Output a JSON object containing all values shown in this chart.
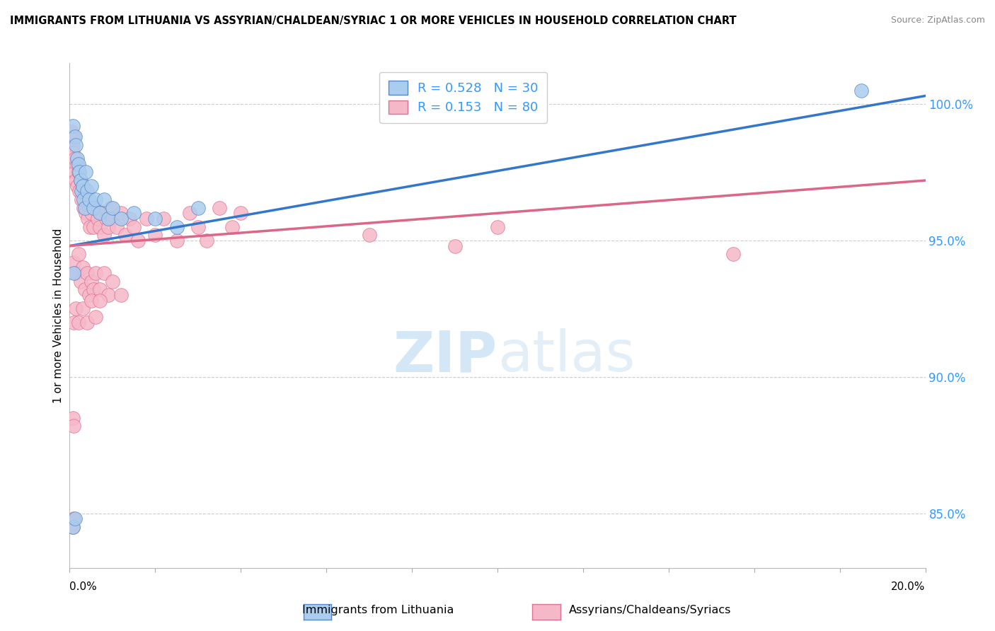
{
  "title": "IMMIGRANTS FROM LITHUANIA VS ASSYRIAN/CHALDEAN/SYRIAC 1 OR MORE VEHICLES IN HOUSEHOLD CORRELATION CHART",
  "source": "Source: ZipAtlas.com",
  "ylabel": "1 or more Vehicles in Household",
  "xmin": 0.0,
  "xmax": 20.0,
  "ymin": 83.0,
  "ymax": 101.5,
  "yticks": [
    85.0,
    90.0,
    95.0,
    100.0
  ],
  "ytick_labels": [
    "85.0%",
    "90.0%",
    "95.0%",
    "100.0%"
  ],
  "blue_r": "0.528",
  "blue_n": "30",
  "pink_r": "0.153",
  "pink_n": "80",
  "blue_label": "Immigrants from Lithuania",
  "pink_label": "Assyrians/Chaldeans/Syriacs",
  "blue_color": "#aaccee",
  "pink_color": "#f5b8c8",
  "blue_edge_color": "#5588cc",
  "pink_edge_color": "#e07090",
  "blue_line_color": "#3377cc",
  "pink_line_color": "#dd6688",
  "blue_trendline": [
    0.0,
    94.8,
    20.0,
    100.3
  ],
  "pink_trendline": [
    0.0,
    94.8,
    20.0,
    97.2
  ],
  "blue_dots": [
    [
      0.08,
      99.2
    ],
    [
      0.12,
      98.8
    ],
    [
      0.15,
      98.5
    ],
    [
      0.18,
      98.0
    ],
    [
      0.2,
      97.8
    ],
    [
      0.22,
      97.5
    ],
    [
      0.25,
      97.2
    ],
    [
      0.28,
      96.8
    ],
    [
      0.3,
      97.0
    ],
    [
      0.32,
      96.5
    ],
    [
      0.35,
      96.2
    ],
    [
      0.38,
      97.5
    ],
    [
      0.4,
      96.8
    ],
    [
      0.45,
      96.5
    ],
    [
      0.5,
      97.0
    ],
    [
      0.55,
      96.2
    ],
    [
      0.6,
      96.5
    ],
    [
      0.7,
      96.0
    ],
    [
      0.8,
      96.5
    ],
    [
      0.9,
      95.8
    ],
    [
      1.0,
      96.2
    ],
    [
      1.2,
      95.8
    ],
    [
      1.5,
      96.0
    ],
    [
      2.0,
      95.8
    ],
    [
      2.5,
      95.5
    ],
    [
      3.0,
      96.2
    ],
    [
      0.1,
      93.8
    ],
    [
      0.08,
      84.5
    ],
    [
      0.12,
      84.8
    ],
    [
      18.5,
      100.5
    ]
  ],
  "pink_dots": [
    [
      0.05,
      99.0
    ],
    [
      0.07,
      98.5
    ],
    [
      0.08,
      98.2
    ],
    [
      0.1,
      98.8
    ],
    [
      0.12,
      97.5
    ],
    [
      0.13,
      98.0
    ],
    [
      0.15,
      97.2
    ],
    [
      0.17,
      97.8
    ],
    [
      0.18,
      97.0
    ],
    [
      0.2,
      97.5
    ],
    [
      0.22,
      96.8
    ],
    [
      0.25,
      97.2
    ],
    [
      0.28,
      96.5
    ],
    [
      0.3,
      97.0
    ],
    [
      0.32,
      96.2
    ],
    [
      0.35,
      96.8
    ],
    [
      0.38,
      96.0
    ],
    [
      0.4,
      96.5
    ],
    [
      0.42,
      95.8
    ],
    [
      0.45,
      96.2
    ],
    [
      0.48,
      95.5
    ],
    [
      0.5,
      96.0
    ],
    [
      0.55,
      95.5
    ],
    [
      0.6,
      96.2
    ],
    [
      0.65,
      95.8
    ],
    [
      0.7,
      95.5
    ],
    [
      0.75,
      96.0
    ],
    [
      0.8,
      95.2
    ],
    [
      0.85,
      95.8
    ],
    [
      0.9,
      95.5
    ],
    [
      0.95,
      96.2
    ],
    [
      1.0,
      95.8
    ],
    [
      1.1,
      95.5
    ],
    [
      1.2,
      96.0
    ],
    [
      1.3,
      95.2
    ],
    [
      1.4,
      95.8
    ],
    [
      1.5,
      95.5
    ],
    [
      1.6,
      95.0
    ],
    [
      1.8,
      95.8
    ],
    [
      2.0,
      95.2
    ],
    [
      2.2,
      95.8
    ],
    [
      2.5,
      95.0
    ],
    [
      2.8,
      96.0
    ],
    [
      3.0,
      95.5
    ],
    [
      3.2,
      95.0
    ],
    [
      3.5,
      96.2
    ],
    [
      3.8,
      95.5
    ],
    [
      4.0,
      96.0
    ],
    [
      0.1,
      94.2
    ],
    [
      0.15,
      93.8
    ],
    [
      0.2,
      94.5
    ],
    [
      0.25,
      93.5
    ],
    [
      0.3,
      94.0
    ],
    [
      0.35,
      93.2
    ],
    [
      0.4,
      93.8
    ],
    [
      0.45,
      93.0
    ],
    [
      0.5,
      93.5
    ],
    [
      0.55,
      93.2
    ],
    [
      0.6,
      93.8
    ],
    [
      0.7,
      93.2
    ],
    [
      0.8,
      93.8
    ],
    [
      0.9,
      93.0
    ],
    [
      1.0,
      93.5
    ],
    [
      1.2,
      93.0
    ],
    [
      0.1,
      92.0
    ],
    [
      0.15,
      92.5
    ],
    [
      0.2,
      92.0
    ],
    [
      0.3,
      92.5
    ],
    [
      0.4,
      92.0
    ],
    [
      0.5,
      92.8
    ],
    [
      0.6,
      92.2
    ],
    [
      0.7,
      92.8
    ],
    [
      0.08,
      88.5
    ],
    [
      0.1,
      88.2
    ],
    [
      0.08,
      84.5
    ],
    [
      0.1,
      84.8
    ],
    [
      7.0,
      95.2
    ],
    [
      9.0,
      94.8
    ],
    [
      10.0,
      95.5
    ],
    [
      15.5,
      94.5
    ]
  ]
}
